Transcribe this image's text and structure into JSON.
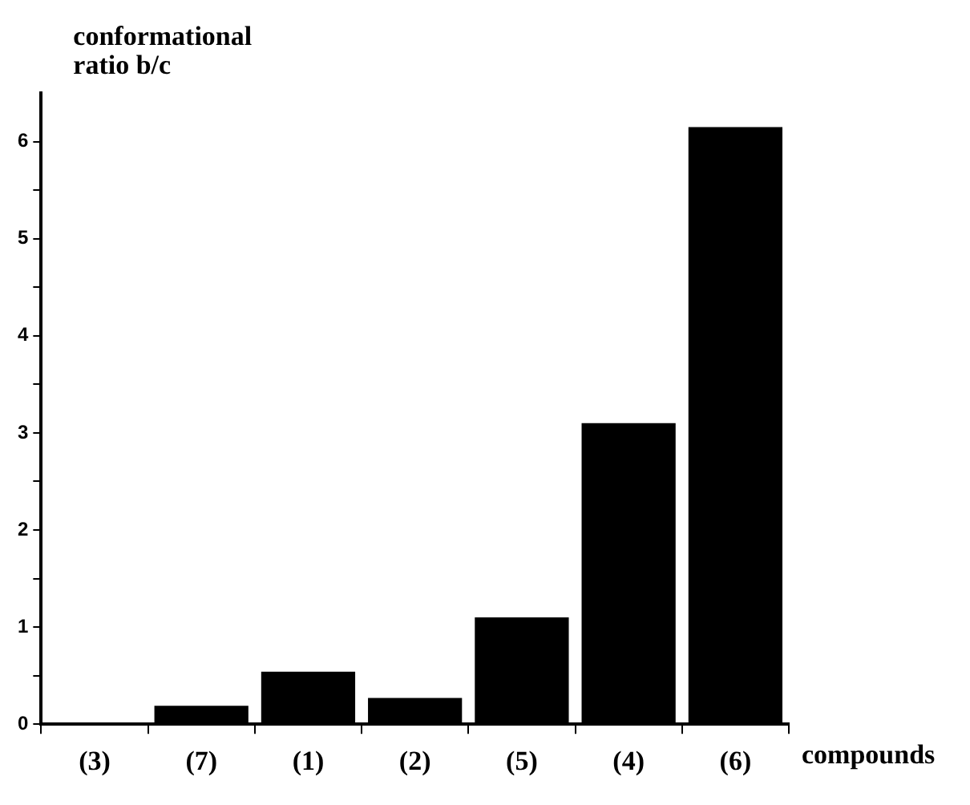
{
  "chart_data": {
    "type": "bar",
    "ylabel": "conformational\nratio b/c",
    "xlabel": "compounds",
    "categories": [
      "(3)",
      "(7)",
      "(1)",
      "(2)",
      "(5)",
      "(4)",
      "(6)"
    ],
    "values": [
      0.01,
      0.19,
      0.54,
      0.27,
      1.1,
      3.1,
      6.15
    ],
    "color": "#000000",
    "ylim": [
      0,
      6.5
    ],
    "yticks": [
      0,
      {
        "value": 0.5,
        "label": null
      },
      1,
      {
        "value": 1.5,
        "label": null
      },
      2,
      {
        "value": 2.5,
        "label": null
      },
      3,
      {
        "value": 3.5,
        "label": null
      },
      4,
      {
        "value": 4.5,
        "label": null
      },
      5,
      {
        "value": 5.5,
        "label": null
      },
      6
    ],
    "grid": false,
    "legend": false
  }
}
